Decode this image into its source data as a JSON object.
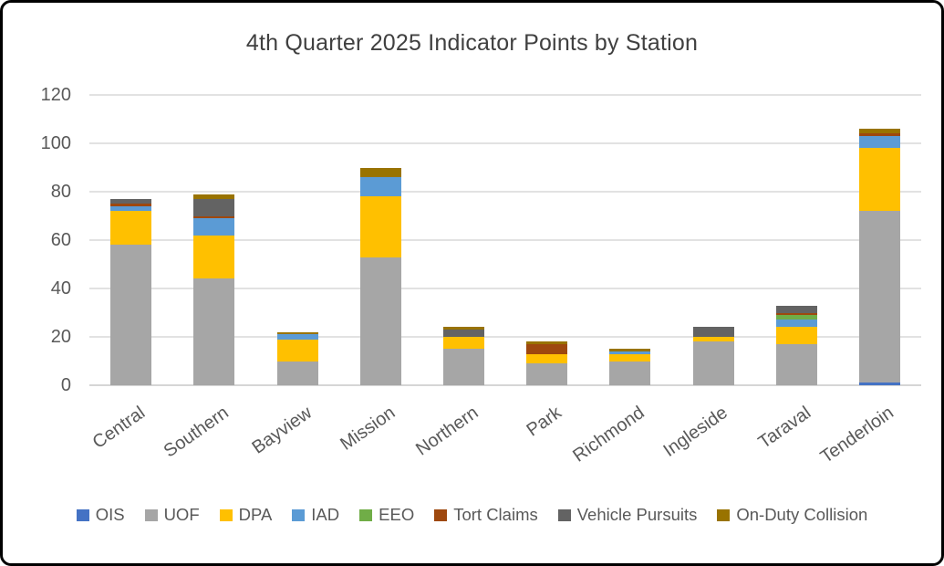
{
  "chart_data": {
    "type": "bar",
    "stacked": true,
    "title": "4th Quarter 2025 Indicator Points by Station",
    "categories": [
      "Central",
      "Southern",
      "Bayview",
      "Mission",
      "Northern",
      "Park",
      "Richmond",
      "Ingleside",
      "Taraval",
      "Tenderloin"
    ],
    "series": [
      {
        "name": "OIS",
        "color": "#4472C4",
        "values": [
          0,
          0,
          0,
          0,
          0,
          0,
          0,
          0,
          0,
          1
        ]
      },
      {
        "name": "UOF",
        "color": "#A6A6A6",
        "values": [
          58,
          44,
          10,
          53,
          15,
          9,
          10,
          18,
          17,
          71
        ]
      },
      {
        "name": "DPA",
        "color": "#FFC000",
        "values": [
          14,
          18,
          9,
          25,
          5,
          4,
          3,
          2,
          7,
          26
        ]
      },
      {
        "name": "IAD",
        "color": "#5B9BD5",
        "values": [
          2,
          7,
          2,
          8,
          0,
          0,
          1,
          0,
          3,
          5
        ]
      },
      {
        "name": "EEO",
        "color": "#70AD47",
        "values": [
          0,
          0,
          0,
          0,
          0,
          0,
          0,
          0,
          2,
          0
        ]
      },
      {
        "name": "Tort Claims",
        "color": "#9E480E",
        "values": [
          1,
          1,
          0,
          0,
          0,
          4,
          0,
          0,
          1,
          1
        ]
      },
      {
        "name": "Vehicle Pursuits",
        "color": "#636363",
        "values": [
          2,
          7,
          0,
          0,
          3,
          0,
          0,
          4,
          3,
          0
        ]
      },
      {
        "name": "On-Duty Collision",
        "color": "#997300",
        "values": [
          0,
          2,
          1,
          4,
          1,
          1,
          1,
          0,
          0,
          2
        ]
      }
    ],
    "ylim": [
      0,
      120
    ],
    "ytick_step": 20,
    "yticks": [
      0,
      20,
      40,
      60,
      80,
      100,
      120
    ],
    "grid": true,
    "legend_position": "bottom",
    "axis_text_color": "#595959",
    "gridline_color": "#e2e2e2"
  }
}
